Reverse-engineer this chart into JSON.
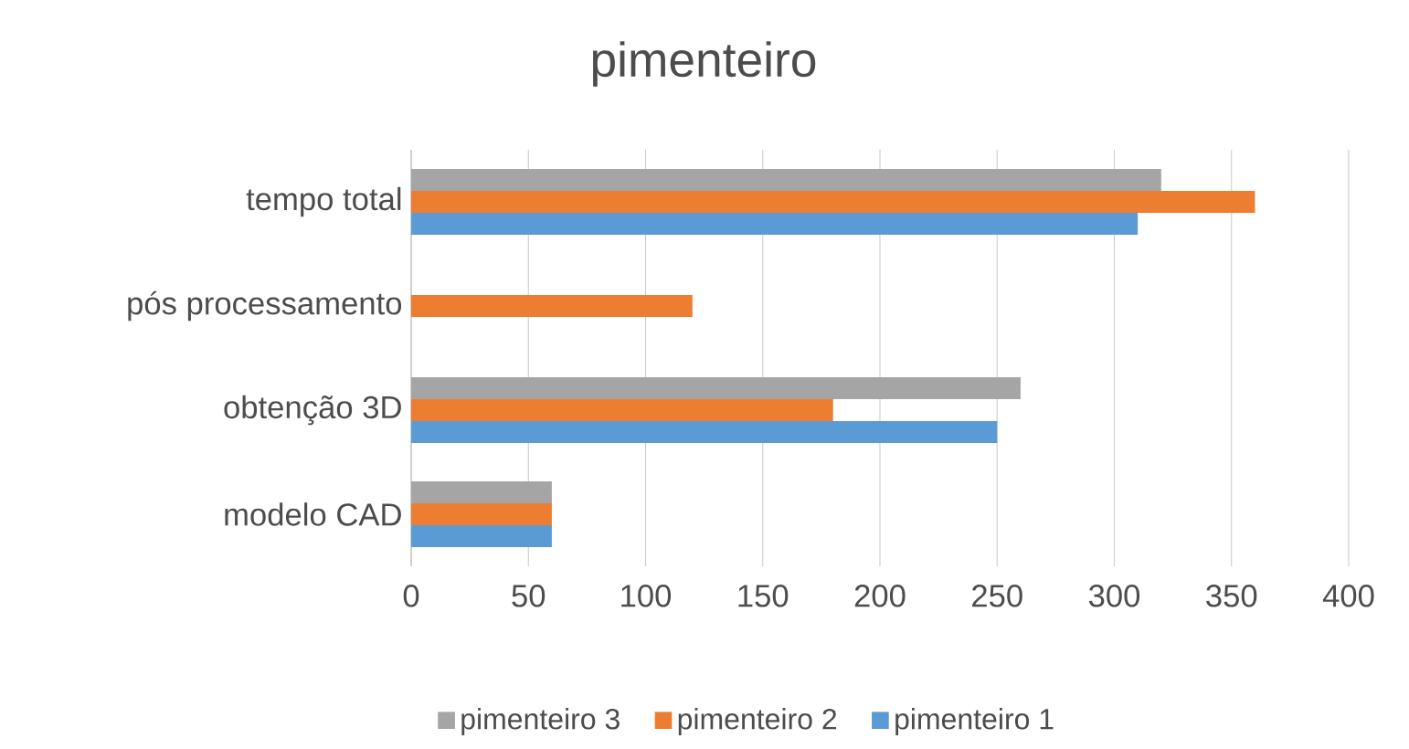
{
  "chart_data": {
    "type": "bar",
    "orientation": "horizontal",
    "title": "pimenteiro",
    "categories": [
      "tempo total",
      "pós processamento",
      "obtenção 3D",
      "modelo CAD"
    ],
    "series": [
      {
        "name": "pimenteiro 1",
        "color": "#5b9bd5",
        "values": [
          310,
          null,
          250,
          60
        ]
      },
      {
        "name": "pimenteiro 2",
        "color": "#ed7d31",
        "values": [
          360,
          120,
          180,
          60
        ]
      },
      {
        "name": "pimenteiro 3",
        "color": "#a5a5a5",
        "values": [
          320,
          null,
          260,
          60
        ]
      }
    ],
    "xlim": [
      0,
      400
    ],
    "xticks": [
      0,
      50,
      100,
      150,
      200,
      250,
      300,
      350,
      400
    ],
    "grid": "x",
    "legend": "bottom"
  }
}
